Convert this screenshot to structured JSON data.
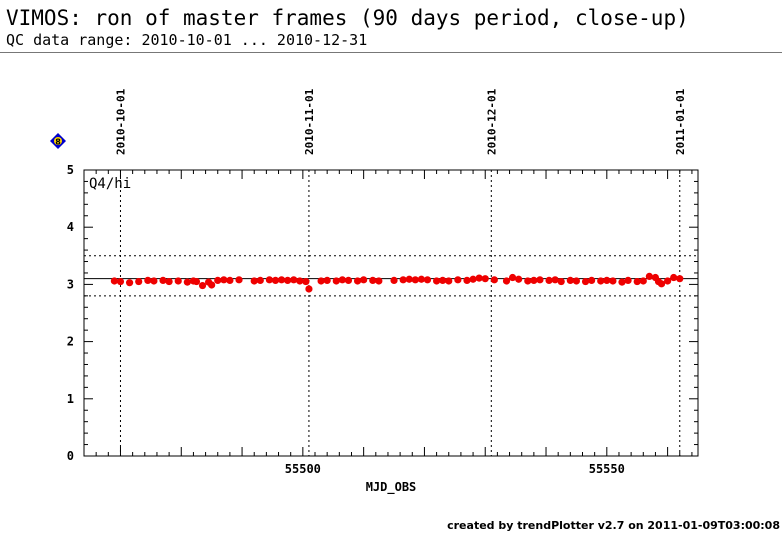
{
  "header": {
    "title": "VIMOS: ron of master frames (90 days period, close-up)",
    "subtitle": "QC data range: 2010-10-01 ... 2010-12-31"
  },
  "footer": {
    "credit": "created by trendPlotter v2.7 on 2011-01-09T03:00:08"
  },
  "chart_data": {
    "type": "scatter",
    "title": "VIMOS: ron of master frames (90 days period, close-up)",
    "subtitle": "QC data range: 2010-10-01 ... 2010-12-31",
    "panel_label": "Q4/hi",
    "xlabel": "MJD_OBS",
    "ylabel": "",
    "xlim": [
      55464,
      55565
    ],
    "ylim": [
      0,
      5
    ],
    "x_ticks": [
      55500,
      55550
    ],
    "y_ticks": [
      0,
      1,
      2,
      3,
      4,
      5
    ],
    "grid": false,
    "date_markers": [
      {
        "x": 55470,
        "label": "2010-10-01"
      },
      {
        "x": 55501,
        "label": "2010-11-01"
      },
      {
        "x": 55531,
        "label": "2010-12-01"
      },
      {
        "x": 55562,
        "label": "2011-01-01"
      }
    ],
    "reference_lines": {
      "center": 3.1,
      "upper": 3.5,
      "lower": 2.8
    },
    "badge_label": "8",
    "colors": {
      "points": "#ee0000",
      "badge": "#0000cc"
    },
    "series": [
      {
        "x": [
          55469,
          55470,
          55471.5,
          55473,
          55474.5,
          55475.5,
          55477,
          55478,
          55479.5,
          55481,
          55482,
          55482.5,
          55483.5,
          55484.5,
          55485,
          55486,
          55487,
          55488,
          55489.5,
          55492,
          55493,
          55494.5,
          55495.5,
          55496.5,
          55497.5,
          55498.5,
          55499.5,
          55500.5,
          55501,
          55503,
          55504,
          55505.5,
          55506.5,
          55507.5,
          55509,
          55510,
          55511.5,
          55512.5,
          55515,
          55516.5,
          55517.5,
          55518.5,
          55519.5,
          55520.5,
          55522,
          55523,
          55524,
          55525.5,
          55527,
          55528,
          55529,
          55530,
          55531.5,
          55533.5,
          55534.5,
          55535.5,
          55537,
          55538,
          55539,
          55540.5,
          55541.5,
          55542.5,
          55544,
          55545,
          55546.5,
          55547.5,
          55549,
          55550,
          55551,
          55552.5,
          55553.5,
          55555,
          55556,
          55557,
          55558,
          55558.5,
          55559,
          55560,
          55561,
          55562
        ],
        "y": [
          3.06,
          3.05,
          3.03,
          3.05,
          3.07,
          3.06,
          3.07,
          3.05,
          3.06,
          3.04,
          3.06,
          3.05,
          2.98,
          3.04,
          2.99,
          3.07,
          3.08,
          3.07,
          3.08,
          3.06,
          3.07,
          3.08,
          3.07,
          3.08,
          3.07,
          3.08,
          3.06,
          3.05,
          2.92,
          3.06,
          3.07,
          3.06,
          3.08,
          3.07,
          3.06,
          3.08,
          3.07,
          3.06,
          3.07,
          3.08,
          3.09,
          3.08,
          3.09,
          3.08,
          3.06,
          3.07,
          3.06,
          3.08,
          3.07,
          3.09,
          3.11,
          3.1,
          3.08,
          3.06,
          3.12,
          3.09,
          3.06,
          3.07,
          3.08,
          3.07,
          3.08,
          3.05,
          3.07,
          3.06,
          3.05,
          3.07,
          3.06,
          3.07,
          3.06,
          3.04,
          3.07,
          3.05,
          3.06,
          3.14,
          3.12,
          3.05,
          3.01,
          3.06,
          3.12,
          3.1
        ]
      }
    ]
  }
}
